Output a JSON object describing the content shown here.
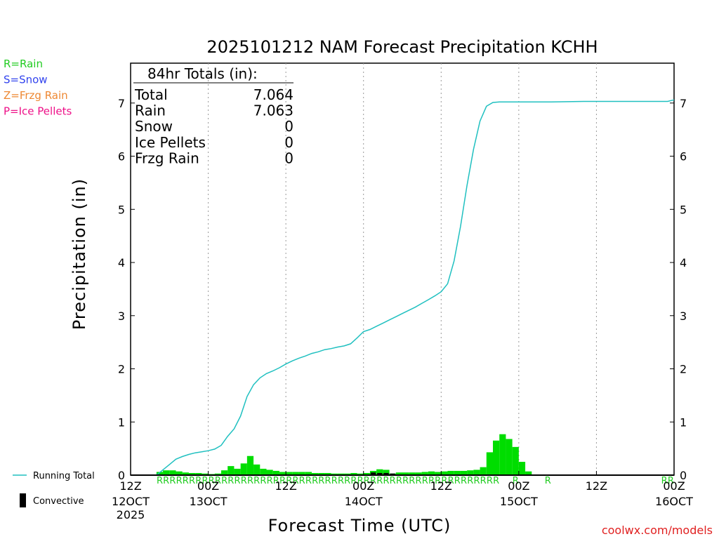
{
  "chart_data": {
    "type": "bar",
    "title": "2025101212 NAM Forecast Precipitation KCHH",
    "ylabel": "Precipitation (in)",
    "xlabel": "Forecast Time (UTC)",
    "ylim": [
      0,
      7.75
    ],
    "yticks": [
      "0",
      "1",
      "2",
      "3",
      "4",
      "5",
      "6",
      "7"
    ],
    "xticks": [
      {
        "hour": 0,
        "top": "12Z",
        "bottom": "12OCT",
        "extra": "2025"
      },
      {
        "hour": 12,
        "top": "00Z",
        "bottom": "13OCT",
        "extra": ""
      },
      {
        "hour": 24,
        "top": "12Z",
        "bottom": "",
        "extra": ""
      },
      {
        "hour": 36,
        "top": "00Z",
        "bottom": "14OCT",
        "extra": ""
      },
      {
        "hour": 48,
        "top": "12Z",
        "bottom": "",
        "extra": ""
      },
      {
        "hour": 60,
        "top": "00Z",
        "bottom": "15OCT",
        "extra": ""
      },
      {
        "hour": 72,
        "top": "12Z",
        "bottom": "",
        "extra": ""
      },
      {
        "hour": 84,
        "top": "00Z",
        "bottom": "16OCT",
        "extra": ""
      }
    ],
    "grid": "vertical dotted",
    "totals": {
      "header": "84hr Totals (in):",
      "rows": [
        {
          "label": "Total",
          "value": "7.064"
        },
        {
          "label": "Rain",
          "value": "7.063"
        },
        {
          "label": "Snow",
          "value": "0"
        },
        {
          "label": "Ice Pellets",
          "value": "0"
        },
        {
          "label": "Frzg Rain",
          "value": "0"
        }
      ]
    },
    "precip_type_legend": [
      {
        "text": "R=Rain",
        "color": "#22cc22"
      },
      {
        "text": "S=Snow",
        "color": "#3344ee"
      },
      {
        "text": "Z=Frzg Rain",
        "color": "#ee8833"
      },
      {
        "text": "P=Ice Pellets",
        "color": "#ee1188"
      }
    ],
    "legend": {
      "running_total": "Running Total",
      "convective": "Convective"
    },
    "colors": {
      "bars": "#00dd00",
      "running_total": "#20c0c0",
      "convective": "#000000",
      "rain_marker": "#22cc22"
    },
    "hourly_precip": {
      "start_hour": 4,
      "values": [
        0.06,
        0.09,
        0.09,
        0.07,
        0.05,
        0.04,
        0.04,
        0.03,
        0.02,
        0.03,
        0.09,
        0.17,
        0.12,
        0.22,
        0.36,
        0.2,
        0.12,
        0.1,
        0.08,
        0.06,
        0.06,
        0.06,
        0.06,
        0.06,
        0.04,
        0.04,
        0.04,
        0.03,
        0.03,
        0.03,
        0.04,
        0.03,
        0.04,
        0.08,
        0.11,
        0.1,
        0.03,
        0.05,
        0.05,
        0.05,
        0.05,
        0.06,
        0.07,
        0.06,
        0.07,
        0.08,
        0.08,
        0.08,
        0.09,
        0.1,
        0.15,
        0.43,
        0.65,
        0.77,
        0.68,
        0.53,
        0.25,
        0.07
      ]
    },
    "convective_bars": [
      {
        "hour": 37.5,
        "value": 0.05
      },
      {
        "hour": 38.5,
        "value": 0.04
      },
      {
        "hour": 39.5,
        "value": 0.04
      },
      {
        "hour": 40.5,
        "value": 0.03
      }
    ],
    "running_total": [
      [
        0,
        0
      ],
      [
        4,
        0
      ],
      [
        5,
        0.1
      ],
      [
        6,
        0.2
      ],
      [
        7,
        0.3
      ],
      [
        8,
        0.35
      ],
      [
        9,
        0.39
      ],
      [
        10,
        0.42
      ],
      [
        11,
        0.44
      ],
      [
        12,
        0.46
      ],
      [
        13,
        0.49
      ],
      [
        14,
        0.56
      ],
      [
        15,
        0.73
      ],
      [
        16,
        0.87
      ],
      [
        17,
        1.11
      ],
      [
        18,
        1.48
      ],
      [
        19,
        1.7
      ],
      [
        20,
        1.83
      ],
      [
        21,
        1.91
      ],
      [
        22,
        1.96
      ],
      [
        23,
        2.02
      ],
      [
        24,
        2.09
      ],
      [
        25,
        2.15
      ],
      [
        26,
        2.2
      ],
      [
        27,
        2.24
      ],
      [
        28,
        2.29
      ],
      [
        29,
        2.32
      ],
      [
        30,
        2.36
      ],
      [
        31,
        2.38
      ],
      [
        32,
        2.41
      ],
      [
        33,
        2.43
      ],
      [
        34,
        2.47
      ],
      [
        35,
        2.58
      ],
      [
        36,
        2.7
      ],
      [
        37,
        2.74
      ],
      [
        38,
        2.8
      ],
      [
        39,
        2.86
      ],
      [
        40,
        2.92
      ],
      [
        41,
        2.98
      ],
      [
        42,
        3.04
      ],
      [
        43,
        3.1
      ],
      [
        44,
        3.16
      ],
      [
        45,
        3.23
      ],
      [
        46,
        3.3
      ],
      [
        47,
        3.37
      ],
      [
        48,
        3.45
      ],
      [
        49,
        3.6
      ],
      [
        50,
        4.03
      ],
      [
        51,
        4.68
      ],
      [
        52,
        5.45
      ],
      [
        53,
        6.13
      ],
      [
        54,
        6.66
      ],
      [
        55,
        6.94
      ],
      [
        56,
        7.01
      ],
      [
        57,
        7.02
      ],
      [
        60,
        7.02
      ],
      [
        65,
        7.02
      ],
      [
        70,
        7.03
      ],
      [
        75,
        7.03
      ],
      [
        80,
        7.03
      ],
      [
        83,
        7.03
      ],
      [
        84,
        7.06
      ]
    ],
    "ptype_marks": [
      {
        "start": 4,
        "end": 57,
        "symbol": "R"
      },
      {
        "start": 59,
        "end": 60,
        "symbol": "R"
      },
      {
        "start": 64,
        "end": 65,
        "symbol": "R"
      },
      {
        "start": 82,
        "end": 84,
        "symbol": "R"
      }
    ],
    "credit": "coolwx.com/models"
  }
}
